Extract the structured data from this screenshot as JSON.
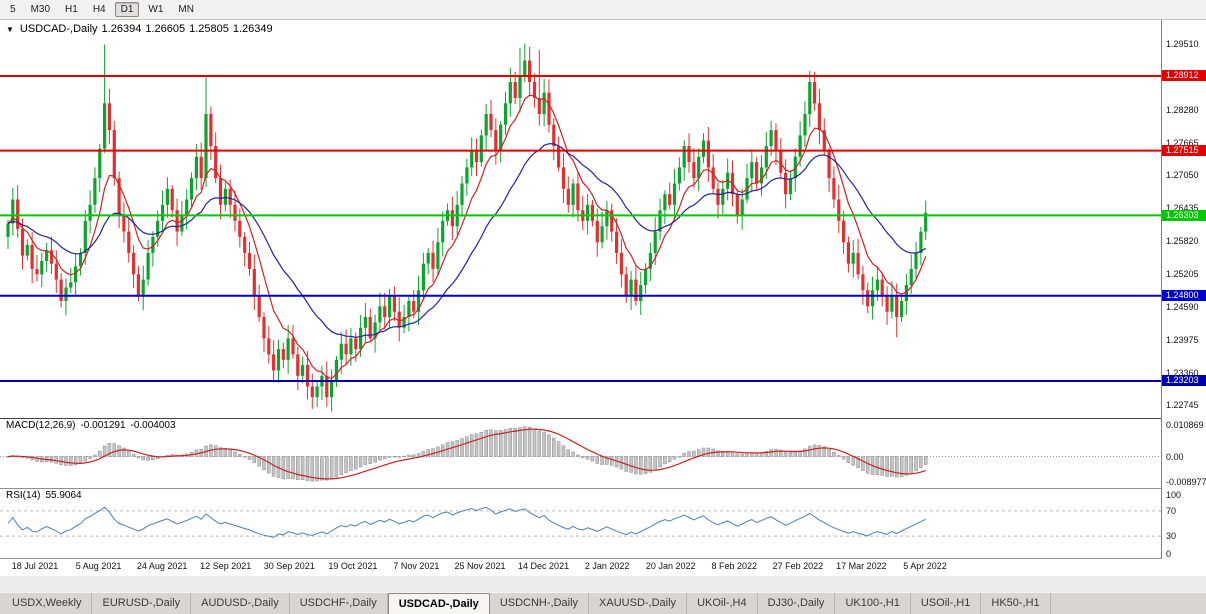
{
  "toolbar": {
    "timeframes": [
      {
        "label": "5",
        "active": false
      },
      {
        "label": "M30",
        "active": false
      },
      {
        "label": "H1",
        "active": false
      },
      {
        "label": "H4",
        "active": false
      },
      {
        "label": "D1",
        "active": true
      },
      {
        "label": "W1",
        "active": false
      },
      {
        "label": "MN",
        "active": false
      }
    ]
  },
  "title": {
    "dropdown_icon": "▼",
    "symbol": "USDCAD-,Daily",
    "open": "1.26394",
    "high": "1.26605",
    "low": "1.25805",
    "close": "1.26349"
  },
  "price_axis": {
    "ticks": [
      "1.29510",
      "1.28895",
      "1.28280",
      "1.27665",
      "1.27050",
      "1.26435",
      "1.25820",
      "1.25205",
      "1.24590",
      "1.23975",
      "1.23360",
      "1.22745"
    ]
  },
  "levels": [
    {
      "label": "1.28912",
      "price": 1.28912,
      "color": "#e00000",
      "thickness": 2
    },
    {
      "label": "1.27515",
      "price": 1.27515,
      "color": "#e00000",
      "thickness": 2
    },
    {
      "label": "1.26303",
      "price": 1.26303,
      "color": "#00c800",
      "thickness": 2
    },
    {
      "label": "1.24800",
      "price": 1.248,
      "color": "#0000cc",
      "thickness": 2
    },
    {
      "label": "1.23203",
      "price": 1.23203,
      "color": "#0000aa",
      "thickness": 2
    }
  ],
  "macd": {
    "name": "MACD(12,26,9)",
    "main_value": "-0.001291",
    "signal_value": "-0.004003",
    "axis_labels": [
      "0.010869",
      "0.00",
      "-0.008977"
    ],
    "fast": 12,
    "slow": 26,
    "signal": 9,
    "histogram_color": "#c4c4c4",
    "histogram_outline": "#8c8c8c",
    "signal_color": "#cc2222",
    "range_top": 0.0125,
    "range_bottom": -0.0105
  },
  "rsi": {
    "name": "RSI(14)",
    "value": "55.9064",
    "axis_labels": [
      "100",
      "70",
      "30",
      "0"
    ],
    "period": 14,
    "levels": [
      70,
      30
    ],
    "line_color": "#4a82b4"
  },
  "dates": [
    "18 Jul 2021",
    "5 Aug 2021",
    "24 Aug 2021",
    "12 Sep 2021",
    "30 Sep 2021",
    "19 Oct 2021",
    "7 Nov 2021",
    "25 Nov 2021",
    "14 Dec 2021",
    "2 Jan 2022",
    "20 Jan 2022",
    "8 Feb 2022",
    "27 Feb 2022",
    "17 Mar 2022",
    "5 Apr 2022"
  ],
  "tabs": [
    {
      "label": "USDX,Weekly",
      "active": false
    },
    {
      "label": "EURUSD-,Daily",
      "active": false
    },
    {
      "label": "AUDUSD-,Daily",
      "active": false
    },
    {
      "label": "USDCHF-,Daily",
      "active": false
    },
    {
      "label": "USDCAD-,Daily",
      "active": true
    },
    {
      "label": "USDCNH-,Daily",
      "active": false
    },
    {
      "label": "XAUUSD-,Daily",
      "active": false
    },
    {
      "label": "UKOil-,H4",
      "active": false
    },
    {
      "label": "DJ30-,Daily",
      "active": false
    },
    {
      "label": "UK100-,H1",
      "active": false
    },
    {
      "label": "USOil-,H1",
      "active": false
    },
    {
      "label": "HK50-,H1",
      "active": false
    }
  ],
  "chart_data": {
    "type": "candlestick",
    "symbol": "USDCAD",
    "timeframe": "Daily",
    "price_range": {
      "top": 1.2996,
      "bottom": 1.2251
    },
    "up_color": "#0ea32e",
    "down_color": "#e03030",
    "ma_fast": {
      "period": 8,
      "color": "#cc2222"
    },
    "ma_slow": {
      "period": 24,
      "color": "#2222a0"
    },
    "closes": [
      1.2615,
      1.266,
      1.2605,
      1.2555,
      1.2575,
      1.253,
      1.252,
      1.2545,
      1.2565,
      1.254,
      1.251,
      1.247,
      1.2495,
      1.2505,
      1.2535,
      1.256,
      1.262,
      1.265,
      1.27,
      1.2755,
      1.284,
      1.279,
      1.27,
      1.263,
      1.26,
      1.256,
      1.252,
      1.248,
      1.251,
      1.256,
      1.259,
      1.262,
      1.265,
      1.268,
      1.264,
      1.26,
      1.263,
      1.266,
      1.27,
      1.274,
      1.27,
      1.282,
      1.276,
      1.27,
      1.265,
      1.268,
      1.265,
      1.262,
      1.259,
      1.256,
      1.253,
      1.248,
      1.244,
      1.24,
      1.237,
      1.234,
      1.238,
      1.236,
      1.24,
      1.237,
      1.233,
      1.235,
      1.231,
      1.229,
      1.231,
      1.233,
      1.229,
      1.232,
      1.236,
      1.239,
      1.237,
      1.24,
      1.238,
      1.242,
      1.244,
      1.24,
      1.243,
      1.246,
      1.244,
      1.248,
      1.245,
      1.242,
      1.244,
      1.247,
      1.245,
      1.249,
      1.254,
      1.256,
      1.253,
      1.258,
      1.262,
      1.264,
      1.261,
      1.265,
      1.269,
      1.272,
      1.275,
      1.273,
      1.278,
      1.282,
      1.279,
      1.275,
      1.28,
      1.284,
      1.288,
      1.285,
      1.289,
      1.292,
      1.288,
      1.285,
      1.282,
      1.286,
      1.28,
      1.276,
      1.272,
      1.268,
      1.265,
      1.269,
      1.264,
      1.262,
      1.265,
      1.262,
      1.258,
      1.261,
      1.264,
      1.26,
      1.256,
      1.252,
      1.248,
      1.251,
      1.247,
      1.25,
      1.253,
      1.256,
      1.26,
      1.264,
      1.267,
      1.265,
      1.269,
      1.272,
      1.276,
      1.273,
      1.27,
      1.274,
      1.277,
      1.272,
      1.268,
      1.265,
      1.268,
      1.271,
      1.267,
      1.263,
      1.266,
      1.27,
      1.273,
      1.269,
      1.272,
      1.276,
      1.279,
      1.275,
      1.271,
      1.267,
      1.27,
      1.274,
      1.278,
      1.282,
      1.288,
      1.284,
      1.279,
      1.275,
      1.27,
      1.266,
      1.262,
      1.258,
      1.254,
      1.256,
      1.252,
      1.249,
      1.246,
      1.249,
      1.251,
      1.248,
      1.245,
      1.248,
      1.244,
      1.247,
      1.25,
      1.253,
      1.256,
      1.26,
      1.2635
    ],
    "spikes": [
      {
        "i": 20,
        "high": 1.295
      },
      {
        "i": 41,
        "high": 1.2893
      },
      {
        "i": 63,
        "low": 1.2268
      },
      {
        "i": 66,
        "low": 1.2272
      },
      {
        "i": 106,
        "high": 1.2944
      },
      {
        "i": 107,
        "high": 1.2952
      },
      {
        "i": 110,
        "high": 1.294
      },
      {
        "i": 166,
        "high": 1.2901
      },
      {
        "i": 184,
        "low": 1.2402
      }
    ]
  }
}
